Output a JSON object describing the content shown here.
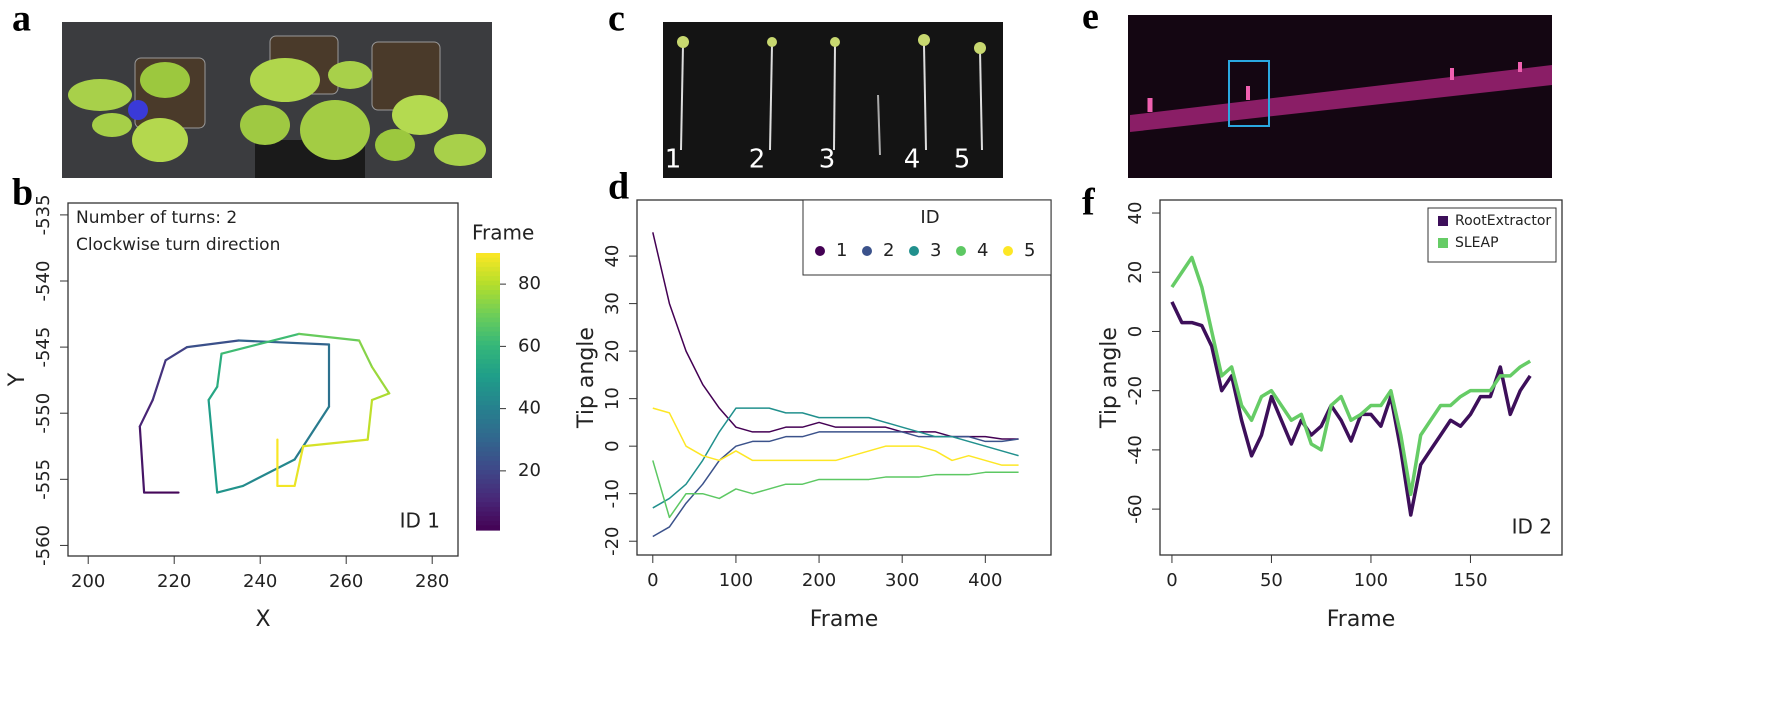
{
  "panel_labels": [
    "a",
    "b",
    "c",
    "d",
    "e",
    "f"
  ],
  "photo_c_labels": [
    "1",
    "2",
    "3",
    "4",
    "5"
  ],
  "chart_data": [
    {
      "type": "trajectory",
      "xlabel": "X",
      "ylabel": "Y",
      "annotations": [
        "Number of turns: 2",
        "Clockwise turn direction",
        "ID 1"
      ],
      "x": [
        221,
        213,
        212,
        215,
        218,
        223,
        235,
        256,
        256,
        248,
        236,
        230,
        228,
        230,
        231,
        249,
        263,
        266,
        270,
        266,
        265,
        250,
        248,
        244,
        244
      ],
      "y": [
        -556,
        -556,
        -551,
        -549,
        -546,
        -545,
        -544.5,
        -544.8,
        -549.5,
        -553.5,
        -555.5,
        -556,
        -549,
        -548,
        -545.5,
        -544,
        -544.5,
        -546.5,
        -548.5,
        -549,
        -552,
        -552.5,
        -555.5,
        -555.5,
        -552
      ],
      "frame": [
        1,
        4,
        8,
        12,
        16,
        20,
        26,
        32,
        36,
        40,
        45,
        48,
        52,
        55,
        58,
        66,
        72,
        75,
        78,
        80,
        83,
        86,
        88,
        89,
        90
      ],
      "xlim": [
        195.3,
        286
      ],
      "xticks": [
        200,
        220,
        240,
        260,
        280
      ],
      "ylim": [
        -560.8,
        -534.1
      ],
      "yticks": [
        -535,
        -540,
        -545,
        -550,
        -555,
        -560
      ],
      "colormap": "viridis",
      "colorbar": {
        "title": "Frame",
        "lim": [
          1,
          90
        ],
        "ticks": [
          20,
          40,
          60,
          80
        ]
      }
    },
    {
      "type": "line",
      "xlabel": "Frame",
      "ylabel": "Tip angle",
      "legend_title": "ID",
      "legend": "top-right",
      "x": [
        0,
        20,
        40,
        60,
        80,
        100,
        120,
        140,
        160,
        180,
        200,
        220,
        240,
        260,
        280,
        300,
        320,
        340,
        360,
        380,
        400,
        420,
        440
      ],
      "series": [
        {
          "name": "1",
          "color": "#440154",
          "values": [
            45,
            30,
            20,
            13,
            8,
            4,
            3,
            3,
            4,
            4,
            5,
            4,
            4,
            4,
            4,
            3,
            3,
            3,
            2,
            2,
            2,
            1.5,
            1.5
          ]
        },
        {
          "name": "2",
          "color": "#3b528b",
          "values": [
            -19,
            -17,
            -12,
            -8,
            -3,
            0,
            1,
            1,
            2,
            2,
            3,
            3,
            3,
            3,
            3,
            3,
            2,
            2,
            2,
            2,
            1,
            1,
            1.5
          ]
        },
        {
          "name": "3",
          "color": "#21908d",
          "values": [
            -13,
            -11,
            -8,
            -3,
            3,
            8,
            8,
            8,
            7,
            7,
            6,
            6,
            6,
            6,
            5,
            4,
            3,
            2,
            2,
            1,
            0,
            -1,
            -2
          ]
        },
        {
          "name": "4",
          "color": "#5dc863",
          "values": [
            -3,
            -15,
            -10,
            -10,
            -11,
            -9,
            -10,
            -9,
            -8,
            -8,
            -7,
            -7,
            -7,
            -7,
            -6.5,
            -6.5,
            -6.5,
            -6,
            -6,
            -6,
            -5.5,
            -5.5,
            -5.5
          ]
        },
        {
          "name": "5",
          "color": "#fde725",
          "values": [
            8,
            7,
            0,
            -2,
            -3,
            -1,
            -3,
            -3,
            -3,
            -3,
            -3,
            -3,
            -2,
            -1,
            0,
            0,
            0,
            -1,
            -3,
            -2,
            -3,
            -4,
            -4
          ]
        }
      ],
      "xlim": [
        -19,
        479
      ],
      "xticks": [
        0,
        100,
        200,
        300,
        400
      ],
      "ylim": [
        -22.9,
        51.8
      ],
      "yticks": [
        -20,
        -10,
        0,
        10,
        20,
        30,
        40
      ]
    },
    {
      "type": "line",
      "xlabel": "Frame",
      "ylabel": "Tip angle",
      "legend": "top-right",
      "annotations": [
        "ID 2"
      ],
      "x": [
        0,
        5,
        10,
        15,
        20,
        25,
        30,
        35,
        40,
        45,
        50,
        55,
        60,
        65,
        70,
        75,
        80,
        85,
        90,
        95,
        100,
        105,
        110,
        115,
        120,
        125,
        130,
        135,
        140,
        145,
        150,
        155,
        160,
        165,
        170,
        175,
        180
      ],
      "series": [
        {
          "name": "RootExtractor",
          "color": "#3d0f5a",
          "values": [
            10,
            3,
            3,
            2,
            -5,
            -20,
            -15,
            -30,
            -42,
            -35,
            -22,
            -30,
            -38,
            -30,
            -35,
            -32,
            -25,
            -30,
            -37,
            -28,
            -28,
            -32,
            -22,
            -40,
            -62,
            -45,
            -40,
            -35,
            -30,
            -32,
            -28,
            -22,
            -22,
            -12,
            -28,
            -20,
            -15
          ]
        },
        {
          "name": "SLEAP",
          "color": "#66cc66",
          "values": [
            15,
            20,
            25,
            15,
            0,
            -15,
            -12,
            -25,
            -30,
            -22,
            -20,
            -25,
            -30,
            -28,
            -38,
            -40,
            -25,
            -22,
            -30,
            -28,
            -25,
            -25,
            -20,
            -35,
            -55,
            -35,
            -30,
            -25,
            -25,
            -22,
            -20,
            -20,
            -20,
            -15,
            -15,
            -12,
            -10
          ]
        }
      ],
      "xlim": [
        -6,
        196
      ],
      "xticks": [
        0,
        50,
        100,
        150
      ],
      "ylim": [
        -75.5,
        44.4
      ],
      "yticks": [
        -60,
        -40,
        -20,
        0,
        20,
        40
      ]
    }
  ]
}
